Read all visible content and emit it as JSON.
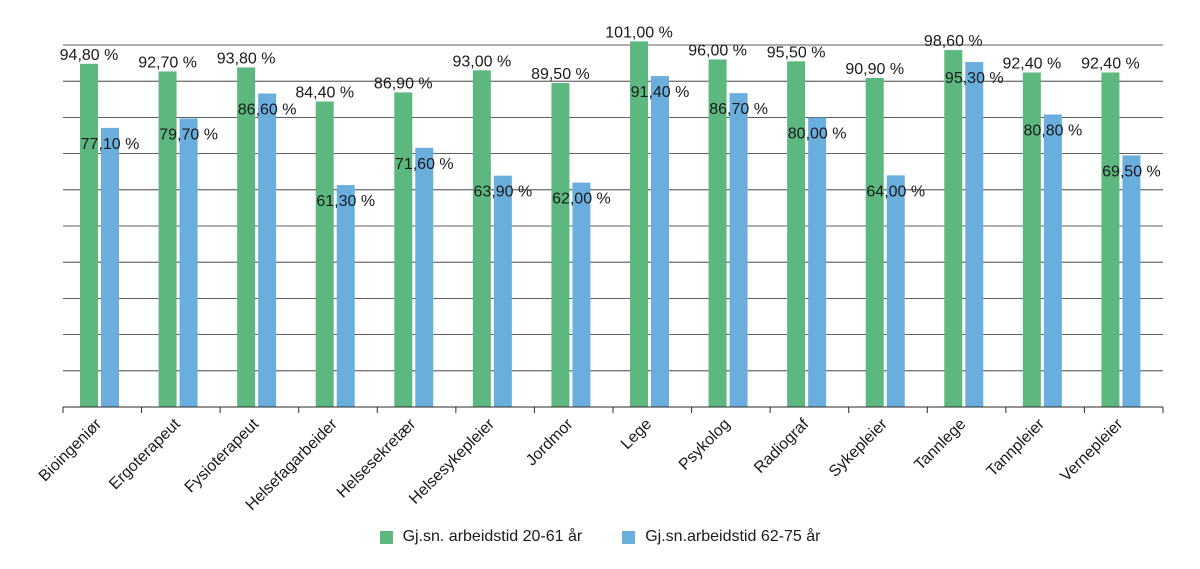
{
  "chart_data": {
    "type": "bar",
    "categories": [
      "Bioingeniør",
      "Ergoterapeut",
      "Fysioterapeut",
      "Helsefagarbeider",
      "Helsesekretær",
      "Helsesykepleier",
      "Jordmor",
      "Lege",
      "Psykolog",
      "Radiograf",
      "Sykepleier",
      "Tannlege",
      "Tannpleier",
      "Vernepleier"
    ],
    "series": [
      {
        "name": "Gj.sn. arbeidstid 20-61 år",
        "color": "#5cb87f",
        "values": [
          94.8,
          92.7,
          93.8,
          84.4,
          86.9,
          93.0,
          89.5,
          101.0,
          96.0,
          95.5,
          90.9,
          98.6,
          92.4,
          92.4
        ],
        "labels": [
          "94,80 %",
          "92,70 %",
          "93,80 %",
          "84,40 %",
          "86,90 %",
          "93,00 %",
          "89,50 %",
          "101,00 %",
          "96,00 %",
          "95,50 %",
          "90,90 %",
          "98,60 %",
          "92,40 %",
          "92,40 %"
        ]
      },
      {
        "name": "Gj.sn.arbeidstid 62-75 år",
        "color": "#6aaede",
        "values": [
          77.1,
          79.7,
          86.6,
          61.3,
          71.6,
          63.9,
          62.0,
          91.4,
          86.7,
          80.0,
          64.0,
          95.3,
          80.8,
          69.5
        ],
        "labels": [
          "77,10 %",
          "79,70 %",
          "86,60 %",
          "61,30 %",
          "71,60 %",
          "63,90 %",
          "62,00 %",
          "91,40 %",
          "86,70 %",
          "80,00 %",
          "64,00 %",
          "95,30 %",
          "80,80 %",
          "69,50 %"
        ]
      }
    ],
    "ylim": [
      0,
      100
    ],
    "grid": true,
    "legend_position": "bottom"
  }
}
